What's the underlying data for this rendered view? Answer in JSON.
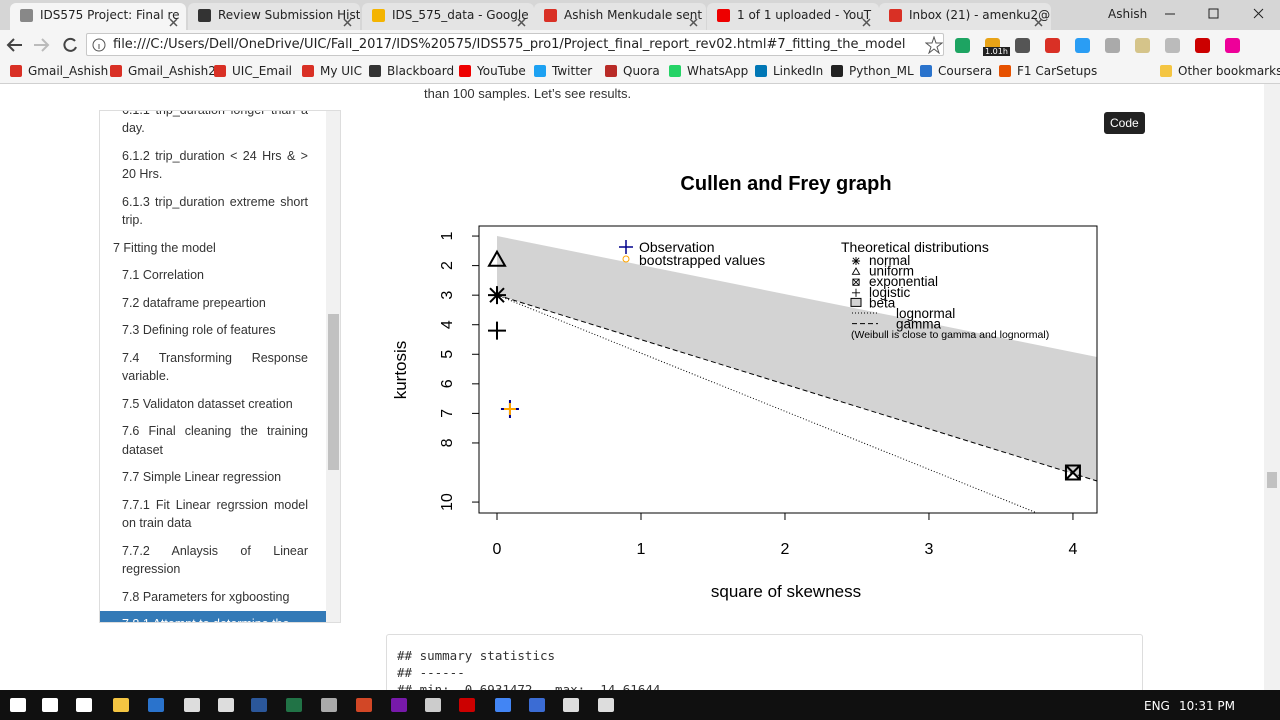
{
  "browser": {
    "tabs": [
      "IDS575 Project: Final re",
      "Review Submission Hist",
      "IDS_575_data - Google",
      "Ashish Menkudale sent",
      "1 of 1 uploaded - YouT",
      "Inbox (21) - amenku2@"
    ],
    "user": "Ashish",
    "address": "file:///C:/Users/Dell/OneDrive/UIC/Fall_2017/IDS%20575/IDS575_pro1/Project_final_report_rev02.html#7_fitting_the_model",
    "extension_badge": "1.01h",
    "bookmarks": [
      "Gmail_Ashish",
      "Gmail_Ashish2",
      "UIC_Email",
      "My UIC",
      "Blackboard",
      "YouTube",
      "Twitter",
      "Quora",
      "WhatsApp",
      "LinkedIn",
      "Python_ML",
      "Coursera",
      "F1 CarSetups"
    ],
    "other_bookmarks": "Other bookmarks"
  },
  "toc": {
    "items": [
      {
        "text": "6.1.1 trip_duration longer than a day.",
        "level": 2
      },
      {
        "text": "6.1.2 trip_duration < 24 Hrs & > 20 Hrs.",
        "level": 2
      },
      {
        "text": "6.1.3 trip_duration extreme short trip.",
        "level": 2
      },
      {
        "text": "7 Fitting the model",
        "level": 1
      },
      {
        "text": "7.1 Correlation",
        "level": 2
      },
      {
        "text": "7.2 dataframe prepeartion",
        "level": 2
      },
      {
        "text": "7.3 Defining role of features",
        "level": 2
      },
      {
        "text": "7.4 Transforming Response variable.",
        "level": 2
      },
      {
        "text": "7.5 Validaton datasset creation",
        "level": 2
      },
      {
        "text": "7.6 Final cleaning the training dataset",
        "level": 2
      },
      {
        "text": "7.7 Simple Linear regression",
        "level": 2
      },
      {
        "text": "7.7.1 Fit Linear regrssion model on train data",
        "level": 2
      },
      {
        "text": "7.7.2 Anlaysis of Linear regression",
        "level": 2
      },
      {
        "text": "7.8 Parameters for xgboosting",
        "level": 2
      },
      {
        "text": "7.8.1 Attempt to determine the",
        "level": 2,
        "active": true
      }
    ]
  },
  "content": {
    "intro": "than 100 samples. Let’s see results.",
    "code_button": "Code",
    "code_lines": [
      "## summary statistics",
      "## ------",
      "## min:  0.6931472   max:  14.61644"
    ]
  },
  "chart": {
    "title": "Cullen and Frey graph",
    "x_label": "square of skewness",
    "y_label": "kurtosis",
    "xlim": [
      -0.125,
      4.167
    ],
    "ylim": [
      10.37,
      0.66
    ],
    "xticks": [
      0,
      1,
      2,
      3,
      4
    ],
    "yticks": [
      1,
      2,
      3,
      4,
      5,
      6,
      7,
      8,
      10
    ],
    "legend_left": {
      "observation": "Observation",
      "bootstrap": "bootstrapped values"
    },
    "legend_right": {
      "title": "Theoretical distributions",
      "entries": [
        "normal",
        "uniform",
        "exponential",
        "logistic",
        "beta",
        "lognormal",
        "gamma"
      ],
      "note": "(Weibull is close to gamma and lognormal)"
    },
    "points": [
      {
        "name": "Observation",
        "x": 0.09,
        "y": 6.85,
        "color": "#00008b",
        "marker": "plus"
      },
      {
        "name": "bootstrapped values",
        "x": 0.09,
        "y": 6.85,
        "color": "#ffa500",
        "marker": "plus-small"
      },
      {
        "name": "normal",
        "x": 0,
        "y": 3,
        "color": "#000000",
        "marker": "asterisk"
      },
      {
        "name": "uniform",
        "x": 0,
        "y": 1.8,
        "color": "#000000",
        "marker": "triangle"
      },
      {
        "name": "exponential",
        "x": 4,
        "y": 9,
        "color": "#000000",
        "marker": "boxx"
      },
      {
        "name": "logistic",
        "x": 0,
        "y": 4.2,
        "color": "#000000",
        "marker": "plus"
      }
    ]
  },
  "taskbar": {
    "language": "ENG",
    "time": "10:31 PM"
  }
}
